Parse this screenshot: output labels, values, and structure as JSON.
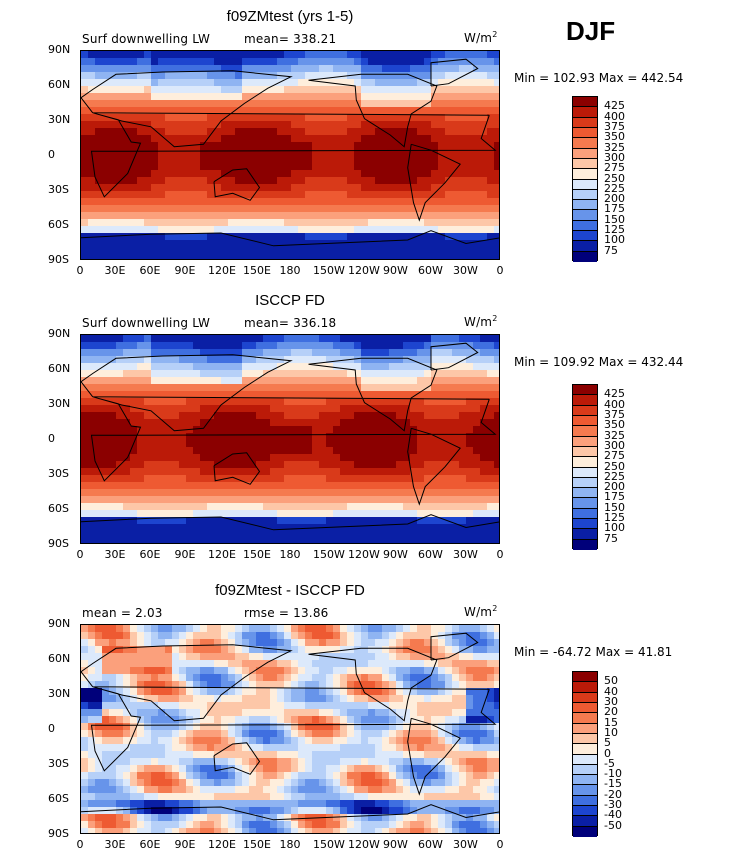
{
  "season": "DJF",
  "lon_ticks": [
    "0",
    "30E",
    "60E",
    "90E",
    "120E",
    "150E",
    "180",
    "150W",
    "120W",
    "90W",
    "60W",
    "30W",
    "0"
  ],
  "lat_ticks": [
    "90N",
    "60N",
    "30N",
    "0",
    "30S",
    "60S",
    "90S"
  ],
  "panels": [
    {
      "title": "f09ZMtest (yrs 1-5)",
      "left_label": "Surf downwelling LW",
      "mean_label": "mean= 338.21",
      "units": "W/m",
      "units_sup": "2",
      "minmax": "Min = 102.93 Max = 442.54",
      "levels": [
        "425",
        "400",
        "375",
        "350",
        "325",
        "300",
        "275",
        "250",
        "225",
        "200",
        "175",
        "150",
        "125",
        "100",
        "75"
      ],
      "colors": [
        "#8b0000",
        "#bb1a08",
        "#d93a1a",
        "#ee5a32",
        "#f57a4f",
        "#fba07c",
        "#fdc7a8",
        "#feeedc",
        "#dce9fb",
        "#b6d0f8",
        "#8fb4f2",
        "#6794ea",
        "#3f6fe0",
        "#1d45cf",
        "#0a1fa5",
        "#00007a"
      ]
    },
    {
      "title": "ISCCP FD",
      "left_label": "Surf downwelling LW",
      "mean_label": "mean= 336.18",
      "units": "W/m",
      "units_sup": "2",
      "minmax": "Min = 109.92 Max = 432.44",
      "levels": [
        "425",
        "400",
        "375",
        "350",
        "325",
        "300",
        "275",
        "250",
        "225",
        "200",
        "175",
        "150",
        "125",
        "100",
        "75"
      ],
      "colors": [
        "#8b0000",
        "#bb1a08",
        "#d93a1a",
        "#ee5a32",
        "#f57a4f",
        "#fba07c",
        "#fdc7a8",
        "#feeedc",
        "#dce9fb",
        "#b6d0f8",
        "#8fb4f2",
        "#6794ea",
        "#3f6fe0",
        "#1d45cf",
        "#0a1fa5",
        "#00007a"
      ]
    },
    {
      "title": "f09ZMtest - ISCCP FD",
      "left_label": "mean =    2.03",
      "mean_label": "rmse =  13.86",
      "units": "W/m",
      "units_sup": "2",
      "minmax": "Min = -64.72 Max =  41.81",
      "levels": [
        "50",
        "40",
        "30",
        "20",
        "15",
        "10",
        "5",
        "0",
        "-5",
        "-10",
        "-15",
        "-20",
        "-30",
        "-40",
        "-50"
      ],
      "colors": [
        "#8b0000",
        "#bb1a08",
        "#d93a1a",
        "#ee5a32",
        "#f57a4f",
        "#fba07c",
        "#fdc7a8",
        "#feeedc",
        "#dce9fb",
        "#b6d0f8",
        "#8fb4f2",
        "#6794ea",
        "#3f6fe0",
        "#1d45cf",
        "#0a1fa5",
        "#00007a"
      ]
    }
  ]
}
